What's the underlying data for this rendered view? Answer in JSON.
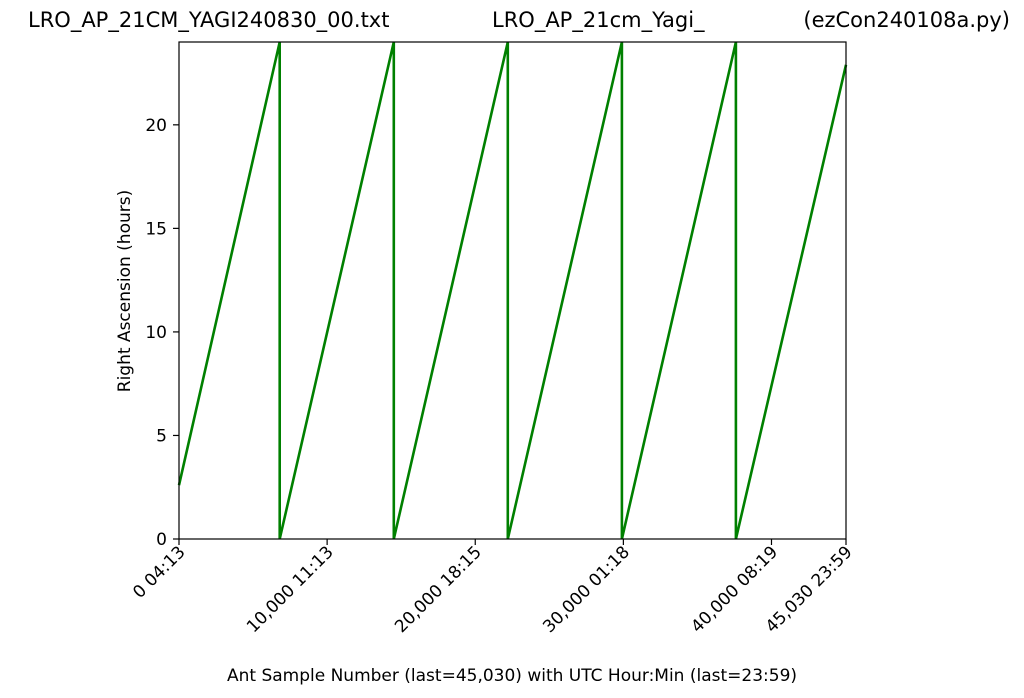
{
  "titles": {
    "left": "LRO_AP_21CM_YAGI240830_00.txt",
    "center": "LRO_AP_21cm_Yagi_",
    "right": "(ezCon240108a.py)"
  },
  "colors": {
    "line": "#008000",
    "axis": "#000000",
    "background": "#ffffff"
  },
  "chart_data": {
    "type": "line",
    "xlabel": "Ant Sample Number (last=45,030) with UTC Hour:Min (last=23:59)",
    "ylabel": "Right Ascension (hours)",
    "xlim": [
      0,
      45030
    ],
    "ylim": [
      0,
      24
    ],
    "grid": false,
    "x_ticks": [
      {
        "value": 0,
        "label": "0  04:13"
      },
      {
        "value": 10000,
        "label": "10,000  11:13"
      },
      {
        "value": 20000,
        "label": "20,000  18:15"
      },
      {
        "value": 30000,
        "label": "30,000  01:18"
      },
      {
        "value": 40000,
        "label": "40,000  08:19"
      },
      {
        "value": 45030,
        "label": "45,030  23:59"
      }
    ],
    "y_ticks": [
      0,
      5,
      10,
      15,
      20
    ],
    "series": [
      {
        "color": "#008000",
        "x": [
          0,
          6800,
          6800,
          14500,
          14500,
          22200,
          22200,
          29900,
          29900,
          37600,
          37600,
          45030
        ],
        "y": [
          2.6,
          24.0,
          0.0,
          24.0,
          0.0,
          24.0,
          0.0,
          24.0,
          0.0,
          24.0,
          0.0,
          22.9
        ]
      }
    ]
  }
}
